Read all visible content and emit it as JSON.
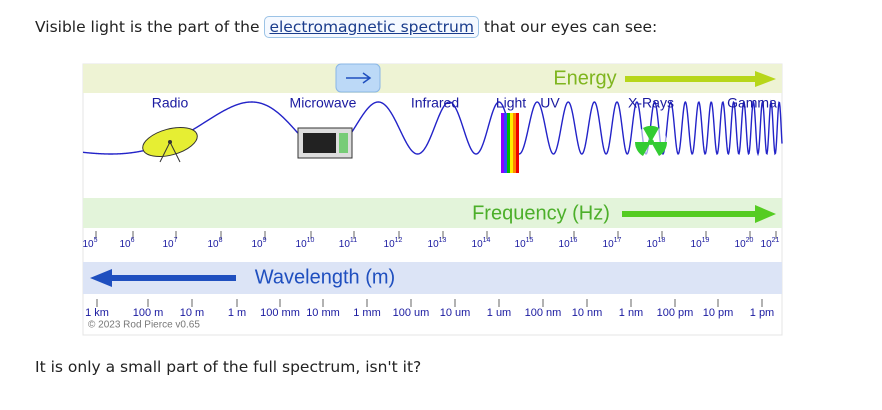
{
  "intro": {
    "before": "Visible light is the part of the",
    "link": "electromagnetic spectrum",
    "after": "that our eyes can see:"
  },
  "diagram": {
    "energy_label": "Energy",
    "bands": [
      "Radio",
      "Microwave",
      "Infrared",
      "Light",
      "UV",
      "X-Rays",
      "Gamma"
    ],
    "frequency_label": "Frequency (Hz)",
    "frequency_base": "10",
    "frequency_exponents": [
      5,
      6,
      7,
      8,
      9,
      10,
      11,
      12,
      13,
      14,
      15,
      16,
      17,
      18,
      19,
      20,
      21
    ],
    "wavelength_label": "Wavelength (m)",
    "wavelength_ticks": [
      "1 km",
      "100 m",
      "10 m",
      "1 m",
      "100 mm",
      "10 mm",
      "1 mm",
      "100 um",
      "10 um",
      "1 um",
      "100 nm",
      "10 nm",
      "1 nm",
      "100 pm",
      "10 pm",
      "1 pm"
    ],
    "copyright": "© 2023 Rod Pierce v0.65"
  },
  "outro": "It is only a small part of the full spectrum, isn't it?"
}
